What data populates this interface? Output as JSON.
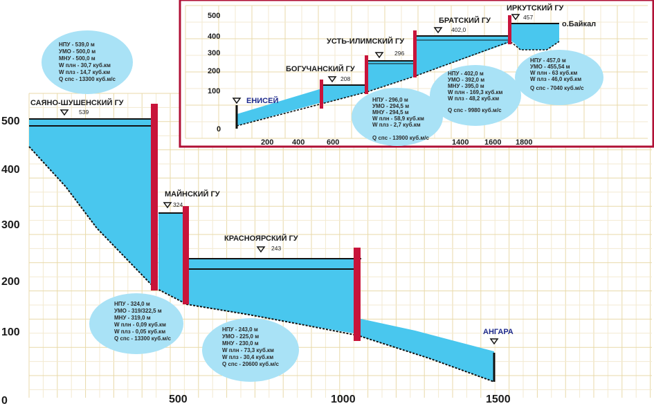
{
  "colors": {
    "water": "#49c7ee",
    "dam": "#c8143a",
    "inset_border": "#b01035",
    "grid_major": "#e8d9a8",
    "grid_minor": "#f3ead0",
    "bubble_fill": "#a9e2f6",
    "river_label": "#1e2a8c"
  },
  "main": {
    "y_ticks": [
      "0",
      "100",
      "200",
      "300",
      "400",
      "500"
    ],
    "x_ticks": [
      "500",
      "1000",
      "1500"
    ],
    "stations": [
      {
        "name": "САЯНО-ШУШЕНСКИЙ ГУ",
        "level": "539"
      },
      {
        "name": "МАЙНСКИЙ ГУ",
        "level": "324"
      },
      {
        "name": "КРАСНОЯРСКИЙ ГУ",
        "level": "243"
      }
    ],
    "river": "АНГАРА",
    "bubbles": [
      [
        "НПУ - 539,0 м",
        "УМО - 500,0 м",
        "МНУ - 500,0 м",
        "W плн - 30,7 куб.км",
        "W плз - 14,7 куб.км",
        "Q спс - 13300 куб.м/с"
      ],
      [
        "НПУ - 324,0 м",
        "УМО - 319/322,5 м",
        "МНУ - 319,0 м",
        "W плн - 0,09 куб.км",
        "W плз - 0,05 куб.км",
        "Q спс - 13300 куб.м/с"
      ],
      [
        "НПУ - 243,0 м",
        "УМО - 225,0 м",
        "МНУ - 230,0 м",
        "W плн - 73,3 куб.км",
        "W плз - 30,4 куб.км",
        "Q спс - 20600 куб.м/с"
      ]
    ]
  },
  "inset": {
    "y_ticks": [
      "0",
      "100",
      "200",
      "300",
      "400",
      "500"
    ],
    "x_ticks": [
      "200",
      "400",
      "600",
      "1400",
      "1600",
      "1800"
    ],
    "river": "ЕНИСЕЙ",
    "lake": "о.Байкал",
    "stations": [
      {
        "name": "БОГУЧАНСКИЙ ГУ",
        "level": "208"
      },
      {
        "name": "УСТЬ-ИЛИМСКИЙ ГУ",
        "level": "296"
      },
      {
        "name": "БРАТСКИЙ ГУ",
        "level": "402,0"
      },
      {
        "name": "ИРКУТСКИЙ ГУ",
        "level": "457"
      }
    ],
    "bubbles": [
      [
        "НПУ - 296,0 м",
        "УМО - 294,5 м",
        "МНУ - 294,5 м",
        "W плн - 58,9 куб.км",
        "W плз - 2,7 куб.км",
        "Q спс - 13900 куб.м/с"
      ],
      [
        "НПУ - 402,0 м",
        "УМО - 392,0 м",
        "МНУ - 395,0 м",
        "W плн - 169,3 куб.км",
        "W плз - 48,2 куб.км",
        "Q спс - 9980 куб.м/с"
      ],
      [
        "НПУ - 457,0 м",
        "УМО - 455,54 м",
        "W плн - 63 куб.км",
        "W плз - 46,0 куб.км",
        "Q спс - 7040 куб.м/с"
      ]
    ]
  }
}
